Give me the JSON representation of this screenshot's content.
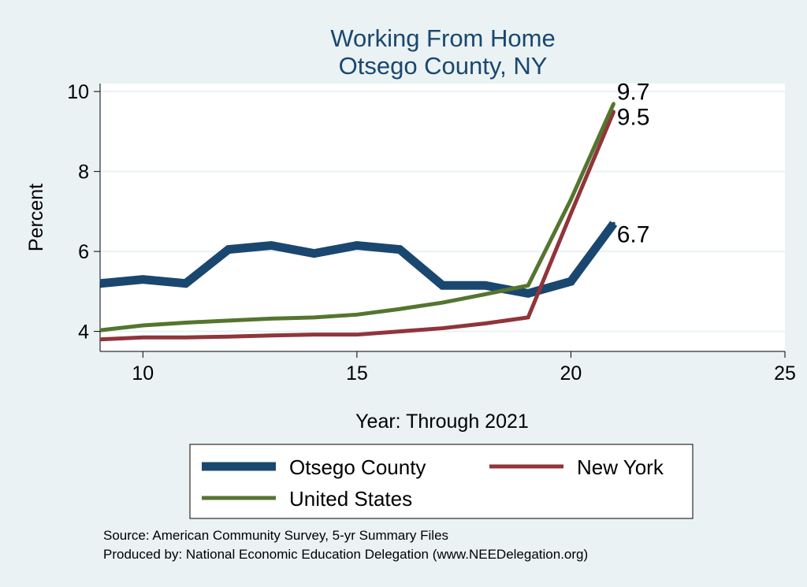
{
  "chart_data": {
    "type": "line",
    "title": [
      "Working From Home",
      "Otsego County, NY"
    ],
    "xlabel": "Year: Through 2021",
    "ylabel": "Percent",
    "xlim": [
      9,
      25
    ],
    "ylim": [
      3.5,
      10.2
    ],
    "xticks": [
      10,
      15,
      20,
      25
    ],
    "yticks": [
      4,
      6,
      8,
      10
    ],
    "grid": "horizontal",
    "legend_position": "bottom",
    "x": [
      9,
      10,
      11,
      12,
      13,
      14,
      15,
      16,
      17,
      18,
      19,
      20,
      21
    ],
    "series": [
      {
        "name": "Otsego County",
        "color": "#1a476f",
        "width": 11,
        "values": [
          5.2,
          5.3,
          5.2,
          6.05,
          6.15,
          5.95,
          6.15,
          6.05,
          5.15,
          5.15,
          4.95,
          5.25,
          6.7
        ],
        "end_label": "6.7"
      },
      {
        "name": "New York",
        "color": "#90353b",
        "width": 5,
        "values": [
          3.8,
          3.85,
          3.85,
          3.87,
          3.9,
          3.92,
          3.92,
          4.0,
          4.08,
          4.2,
          4.35,
          6.95,
          9.5
        ],
        "end_label": "9.5"
      },
      {
        "name": "United States",
        "color": "#55752f",
        "width": 5,
        "values": [
          4.03,
          4.15,
          4.22,
          4.27,
          4.32,
          4.35,
          4.42,
          4.56,
          4.72,
          4.93,
          5.15,
          7.3,
          9.7
        ],
        "end_label": "9.7"
      }
    ]
  },
  "legend": {
    "items": [
      {
        "label": "Otsego County",
        "series": 0
      },
      {
        "label": "New York",
        "series": 1
      },
      {
        "label": "United States",
        "series": 2
      }
    ]
  },
  "notes": {
    "source": "Source: American Community Survey, 5-yr Summary Files",
    "produced": "Produced by: National Economic Education Delegation (www.NEEDelegation.org)"
  },
  "colors": {
    "background": "#eaf2f3",
    "plot_area": "#ffffff",
    "gridline": "#eaf2f3",
    "title": "#1a476f"
  }
}
